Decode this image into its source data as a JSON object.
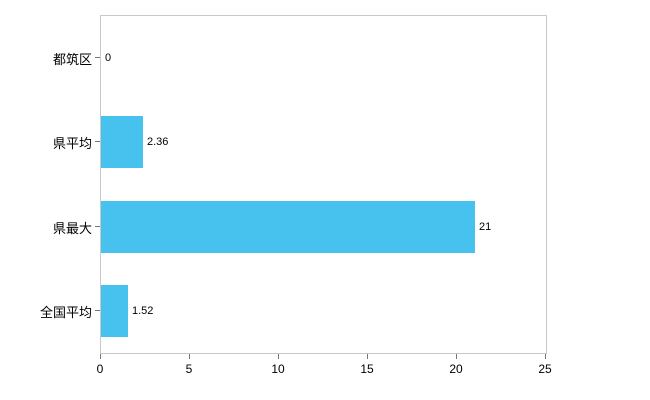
{
  "chart_data": {
    "type": "bar",
    "orientation": "horizontal",
    "title": "",
    "xlabel": "",
    "ylabel": "",
    "categories": [
      "都筑区",
      "県平均",
      "県最大",
      "全国平均"
    ],
    "values": [
      0,
      2.36,
      21,
      1.52
    ],
    "value_labels": [
      "0",
      "2.36",
      "21",
      "1.52"
    ],
    "xlim": [
      0,
      25
    ],
    "x_ticks": [
      0,
      5,
      10,
      15,
      20,
      25
    ],
    "bar_color": "#47c2ef",
    "grid": "off",
    "legend": "none"
  }
}
